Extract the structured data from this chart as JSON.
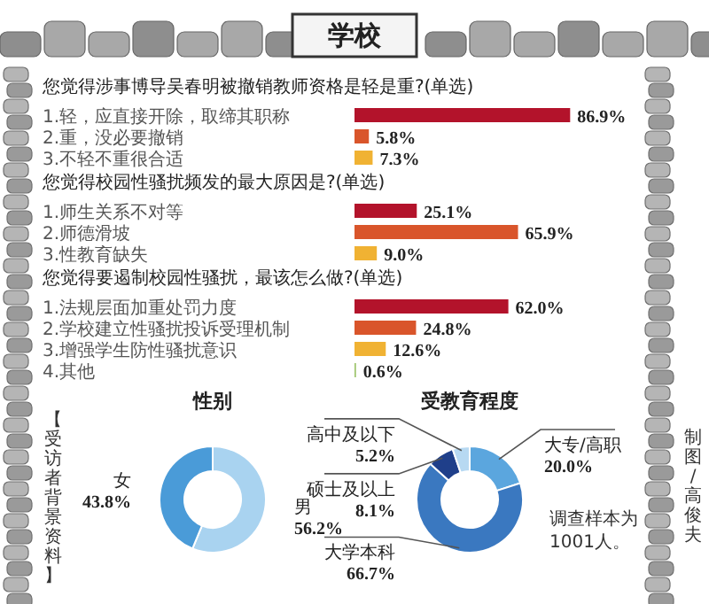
{
  "chart_data": [
    {
      "type": "other",
      "title": "学校",
      "annotations": [
        "【受访者背景资料】",
        "调查样本为1001人。",
        "制图/高俊夫"
      ]
    },
    {
      "type": "bar",
      "orientation": "horizontal",
      "title": "您觉得涉事博导吴春明被撤销教师资格是轻是重?(单选)",
      "categories": [
        "1.轻，应直接开除，取缔其职称",
        "2.重，没必要撤销",
        "3.不轻不重很合适"
      ],
      "values": [
        86.9,
        5.8,
        7.3
      ],
      "colors": [
        "#b3132b",
        "#d9552b",
        "#f0b233"
      ],
      "value_labels": [
        "86.9%",
        "5.8%",
        "7.3%"
      ]
    },
    {
      "type": "bar",
      "orientation": "horizontal",
      "title": "您觉得校园性骚扰频发的最大原因是?(单选)",
      "categories": [
        "1.师生关系不对等",
        "2.师德滑坡",
        "3.性教育缺失"
      ],
      "values": [
        25.1,
        65.9,
        9.0
      ],
      "colors": [
        "#b3132b",
        "#d9552b",
        "#f0b233"
      ],
      "value_labels": [
        "25.1%",
        "65.9%",
        "9.0%"
      ]
    },
    {
      "type": "bar",
      "orientation": "horizontal",
      "title": "您觉得要遏制校园性骚扰，最该怎么做?(单选)",
      "categories": [
        "1.法规层面加重处罚力度",
        "2.学校建立性骚扰投诉受理机制",
        "3.增强学生防性骚扰意识",
        "4.其他"
      ],
      "values": [
        62.0,
        24.8,
        12.6,
        0.6
      ],
      "colors": [
        "#b3132b",
        "#d9552b",
        "#f0b233",
        "#9cc46a"
      ],
      "value_labels": [
        "62.0%",
        "24.8%",
        "12.6%",
        "0.6%"
      ]
    },
    {
      "type": "donut",
      "title": "性别",
      "categories": [
        "男",
        "女"
      ],
      "values": [
        56.2,
        43.8
      ],
      "colors": [
        "#a9d3f0",
        "#4a9bd8"
      ],
      "value_labels": [
        "56.2%",
        "43.8%"
      ]
    },
    {
      "type": "donut",
      "title": "受教育程度",
      "categories": [
        "大专/高职",
        "大学本科",
        "硕士及以上",
        "高中及以下"
      ],
      "values": [
        20.0,
        66.7,
        8.1,
        5.2
      ],
      "colors": [
        "#5ba6de",
        "#3a78c0",
        "#1f3f8a",
        "#b7d9f2"
      ],
      "value_labels": [
        "20.0%",
        "66.7%",
        "8.1%",
        "5.2%"
      ]
    }
  ]
}
